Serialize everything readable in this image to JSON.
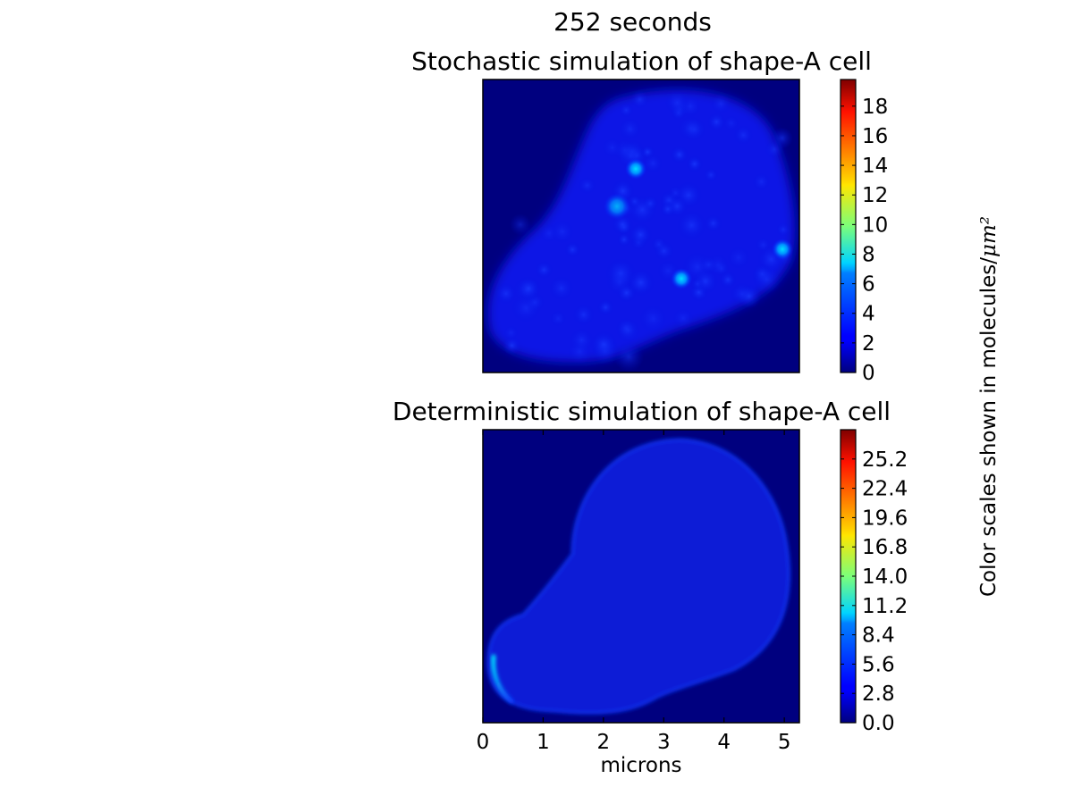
{
  "figure": {
    "suptitle": "252 seconds",
    "colorbar_label_text": "Color scales shown in molecules/",
    "colorbar_label_unit": "μm²"
  },
  "chart_data": [
    {
      "type": "heatmap",
      "title": "Stochastic simulation of shape-A cell",
      "xlabel": "",
      "ylabel": "",
      "xlim": [
        0,
        5.25
      ],
      "show_x_ticks": false,
      "colormap": "jet",
      "background_color": "#00007f",
      "colorbar": {
        "range": [
          0,
          19.8
        ],
        "ticks": [
          "0",
          "2",
          "4",
          "6",
          "8",
          "10",
          "12",
          "14",
          "16",
          "18"
        ]
      },
      "field_description_values": {
        "blob_typical_density": 2.5,
        "hotspots": [
          {
            "x": 2.55,
            "y": 3.37,
            "value": 6.5
          },
          {
            "x": 2.25,
            "y": 2.75,
            "value": 4.5
          },
          {
            "x": 4.98,
            "y": 2.1,
            "value": 6.5
          },
          {
            "x": 3.3,
            "y": 1.55,
            "value": 7.0
          }
        ]
      }
    },
    {
      "type": "heatmap",
      "title": "Deterministic simulation of shape-A cell",
      "xlabel": "microns",
      "ylabel": "",
      "xlim": [
        0,
        5.25
      ],
      "xticks": [
        "0",
        "1",
        "2",
        "3",
        "4",
        "5"
      ],
      "colormap": "jet",
      "background_color": "#00007f",
      "colorbar": {
        "range": [
          0,
          28.0
        ],
        "ticks": [
          "0.0",
          "2.8",
          "5.6",
          "8.4",
          "11.2",
          "14.0",
          "16.8",
          "19.6",
          "22.4",
          "25.2"
        ]
      },
      "field_description_values": {
        "interior_density": 2.5,
        "edge_peak_density": 8.4
      }
    }
  ]
}
